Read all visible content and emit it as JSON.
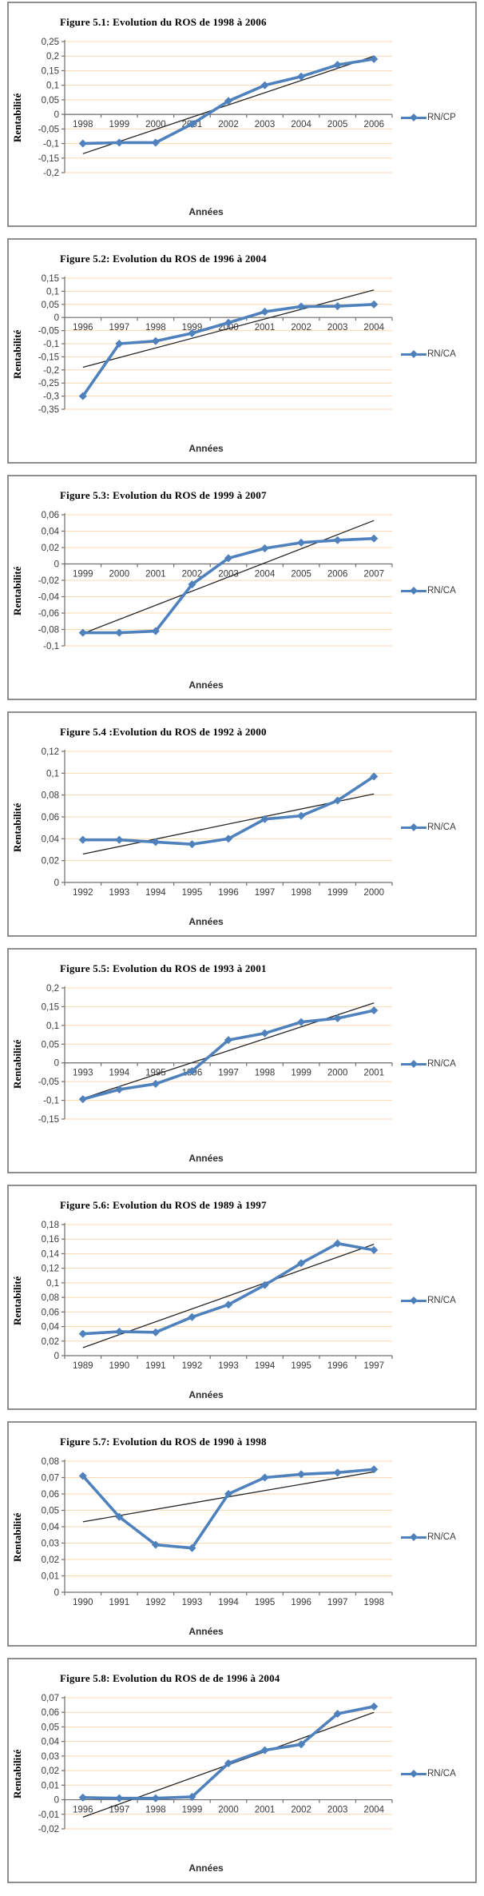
{
  "colors": {
    "line": "#4f81bd",
    "trend": "#262626",
    "gridline": "#fbd9b1",
    "axis": "#6f6f6f",
    "tick_text": "#393939",
    "border": "#8e8e8e"
  },
  "chart_data": [
    {
      "type": "line",
      "title": "Figure 5.1: Evolution du ROS de 1998 à 2006",
      "ylabel": "Rentabilité",
      "xlabel": "Années",
      "legend": "RN/CP",
      "legend_position": "right",
      "grid": true,
      "categories": [
        "1998",
        "1999",
        "2000",
        "2001",
        "2002",
        "2003",
        "2004",
        "2005",
        "2006"
      ],
      "values": [
        -0.1,
        -0.097,
        -0.097,
        -0.033,
        0.046,
        0.1,
        0.13,
        0.17,
        0.19
      ],
      "trendline": {
        "start": -0.135,
        "end": 0.2
      },
      "yticks": [
        0.25,
        0.2,
        0.15,
        0.1,
        0.05,
        0,
        -0.05,
        -0.1,
        -0.15,
        -0.2
      ],
      "ylim": [
        -0.2,
        0.25
      ]
    },
    {
      "type": "line",
      "title": "Figure 5.2: Evolution du ROS de 1996 à 2004",
      "ylabel": "Rentabilité",
      "xlabel": "Années",
      "legend": "RN/CA",
      "legend_position": "right",
      "grid": true,
      "categories": [
        "1996",
        "1997",
        "1998",
        "1999",
        "2000",
        "2001",
        "2002",
        "2003",
        "2004"
      ],
      "values": [
        -0.3,
        -0.1,
        -0.09,
        -0.06,
        -0.02,
        0.022,
        0.042,
        0.043,
        0.05
      ],
      "trendline": {
        "start": -0.19,
        "end": 0.105
      },
      "yticks": [
        0.15,
        0.1,
        0.05,
        0,
        -0.05,
        -0.1,
        -0.15,
        -0.2,
        -0.25,
        -0.3,
        -0.35
      ],
      "ylim": [
        -0.35,
        0.15
      ]
    },
    {
      "type": "line",
      "title": "Figure 5.3: Evolution du ROS de 1999 à 2007",
      "ylabel": "Rentabilité",
      "xlabel": "Années",
      "legend": "RN/CA",
      "legend_position": "right",
      "grid": true,
      "categories": [
        "1999",
        "2000",
        "2001",
        "2002",
        "2003",
        "2004",
        "2005",
        "2006",
        "2007"
      ],
      "values": [
        -0.084,
        -0.084,
        -0.082,
        -0.025,
        0.007,
        0.019,
        0.026,
        0.029,
        0.031
      ],
      "trendline": {
        "start": -0.085,
        "end": 0.053
      },
      "yticks": [
        0.06,
        0.04,
        0.02,
        0,
        -0.02,
        -0.04,
        -0.06,
        -0.08,
        -0.1
      ],
      "ylim": [
        -0.1,
        0.06
      ]
    },
    {
      "type": "line",
      "title": "Figure 5.4 :Evolution du ROS de 1992 à 2000",
      "ylabel": "Rentabilité",
      "xlabel": "Années",
      "legend": "RN/CA",
      "legend_position": "right",
      "grid": true,
      "categories": [
        "1992",
        "1993",
        "1994",
        "1995",
        "1996",
        "1997",
        "1998",
        "1999",
        "2000"
      ],
      "values": [
        0.039,
        0.039,
        0.037,
        0.035,
        0.04,
        0.058,
        0.061,
        0.075,
        0.097
      ],
      "trendline": {
        "start": 0.026,
        "end": 0.081
      },
      "yticks": [
        0.12,
        0.1,
        0.08,
        0.06,
        0.04,
        0.02,
        0
      ],
      "ylim": [
        0,
        0.12
      ]
    },
    {
      "type": "line",
      "title": "Figure 5.5: Evolution du ROS de 1993 à 2001",
      "ylabel": "Rentabilité",
      "xlabel": "Années",
      "legend": "RN/CA",
      "legend_position": "right",
      "grid": true,
      "categories": [
        "1993",
        "1994",
        "1995",
        "1996",
        "1997",
        "1998",
        "1999",
        "2000",
        "2001"
      ],
      "values": [
        -0.097,
        -0.071,
        -0.056,
        -0.022,
        0.061,
        0.079,
        0.109,
        0.119,
        0.14
      ],
      "trendline": {
        "start": -0.095,
        "end": 0.16
      },
      "yticks": [
        0.2,
        0.15,
        0.1,
        0.05,
        0,
        -0.05,
        -0.1,
        -0.15
      ],
      "ylim": [
        -0.15,
        0.2
      ]
    },
    {
      "type": "line",
      "title": "Figure 5.6: Evolution du ROS de 1989 à 1997",
      "ylabel": "Rentabilité",
      "xlabel": "Années",
      "legend": "RN/CA",
      "legend_position": "right",
      "grid": true,
      "categories": [
        "1989",
        "1990",
        "1991",
        "1992",
        "1993",
        "1994",
        "1995",
        "1996",
        "1997"
      ],
      "values": [
        0.03,
        0.033,
        0.032,
        0.053,
        0.07,
        0.097,
        0.127,
        0.154,
        0.145
      ],
      "trendline": {
        "start": 0.011,
        "end": 0.153
      },
      "yticks": [
        0.18,
        0.16,
        0.14,
        0.12,
        0.1,
        0.08,
        0.06,
        0.04,
        0.02,
        0
      ],
      "ylim": [
        0,
        0.18
      ]
    },
    {
      "type": "line",
      "title": "Figure 5.7: Evolution du ROS de 1990 à 1998",
      "ylabel": "Rentabilité",
      "xlabel": "Années",
      "legend": "RN/CA",
      "legend_position": "right",
      "grid": true,
      "categories": [
        "1990",
        "1991",
        "1992",
        "1993",
        "1994",
        "1995",
        "1996",
        "1997",
        "1998"
      ],
      "values": [
        0.071,
        0.046,
        0.029,
        0.027,
        0.06,
        0.07,
        0.072,
        0.073,
        0.075
      ],
      "trendline": {
        "start": 0.043,
        "end": 0.0735
      },
      "yticks": [
        0.08,
        0.07,
        0.06,
        0.05,
        0.04,
        0.03,
        0.02,
        0.01,
        0
      ],
      "ylim": [
        0,
        0.08
      ]
    },
    {
      "type": "line",
      "title": "Figure 5.8: Evolution du ROS de de 1996 à 2004",
      "ylabel": "Rentabilité",
      "xlabel": "Années",
      "legend": "RN/CA",
      "legend_position": "right",
      "grid": true,
      "categories": [
        "1996",
        "1997",
        "1998",
        "1999",
        "2000",
        "2001",
        "2002",
        "2003",
        "2004"
      ],
      "values": [
        0.0015,
        0.001,
        0.001,
        0.002,
        0.025,
        0.034,
        0.038,
        0.059,
        0.064
      ],
      "trendline": {
        "start": -0.012,
        "end": 0.06
      },
      "yticks": [
        0.07,
        0.06,
        0.05,
        0.04,
        0.03,
        0.02,
        0.01,
        0,
        -0.01,
        -0.02
      ],
      "ylim": [
        -0.02,
        0.07
      ]
    }
  ]
}
